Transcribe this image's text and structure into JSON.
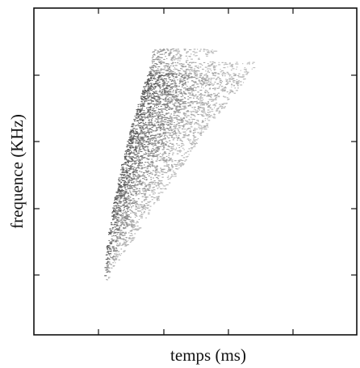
{
  "chart_data": {
    "type": "heatmap",
    "title": "",
    "xlabel": "temps (ms)",
    "ylabel": "frequence (KHz)",
    "x_tick_labels": [],
    "y_tick_labels": [],
    "grid": false,
    "legend": "none",
    "colors": {
      "ink": "#3a3a3a",
      "axis": "#111111",
      "background": "#ffffff"
    }
  }
}
